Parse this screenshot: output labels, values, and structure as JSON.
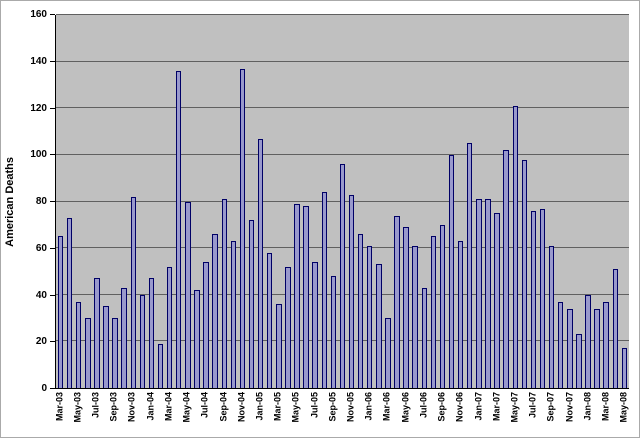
{
  "chart_data": {
    "type": "bar",
    "title": "",
    "xlabel": "",
    "ylabel": "American Deaths",
    "ylim": [
      0,
      160
    ],
    "ytick_step": 20,
    "yticks": [
      0,
      20,
      40,
      60,
      80,
      100,
      120,
      140,
      160
    ],
    "grid": true,
    "legend": false,
    "xtick_label_every": 2,
    "categories": [
      "Mar-03",
      "Apr-03",
      "May-03",
      "Jun-03",
      "Jul-03",
      "Aug-03",
      "Sep-03",
      "Oct-03",
      "Nov-03",
      "Dec-03",
      "Jan-04",
      "Feb-04",
      "Mar-04",
      "Apr-04",
      "May-04",
      "Jun-04",
      "Jul-04",
      "Aug-04",
      "Sep-04",
      "Oct-04",
      "Nov-04",
      "Dec-04",
      "Jan-05",
      "Feb-05",
      "Mar-05",
      "Apr-05",
      "May-05",
      "Jun-05",
      "Jul-05",
      "Aug-05",
      "Sep-05",
      "Oct-05",
      "Nov-05",
      "Dec-05",
      "Jan-06",
      "Feb-06",
      "Mar-06",
      "Apr-06",
      "May-06",
      "Jun-06",
      "Jul-06",
      "Aug-06",
      "Sep-06",
      "Oct-06",
      "Nov-06",
      "Dec-06",
      "Jan-07",
      "Feb-07",
      "Mar-07",
      "Apr-07",
      "May-07",
      "Jun-07",
      "Jul-07",
      "Aug-07",
      "Sep-07",
      "Oct-07",
      "Nov-07",
      "Dec-07",
      "Jan-08",
      "Feb-08",
      "Mar-08",
      "Apr-08",
      "May-08"
    ],
    "values": [
      65,
      73,
      37,
      30,
      47,
      35,
      30,
      43,
      82,
      40,
      47,
      19,
      52,
      136,
      80,
      42,
      54,
      66,
      81,
      63,
      137,
      72,
      107,
      58,
      36,
      52,
      79,
      78,
      54,
      84,
      48,
      96,
      83,
      66,
      61,
      53,
      30,
      74,
      69,
      61,
      43,
      65,
      70,
      100,
      63,
      105,
      81,
      81,
      75,
      102,
      121,
      98,
      76,
      77,
      61,
      37,
      34,
      23,
      40,
      34,
      37,
      51,
      17
    ],
    "colors": {
      "chart_bg": "#FFFFFF",
      "plot_bg": "#C0C0C0",
      "bar_fill": "#9999CC",
      "bar_border": "#000066",
      "gridline": "#606060",
      "axis": "#000000",
      "text": "#000000"
    }
  }
}
